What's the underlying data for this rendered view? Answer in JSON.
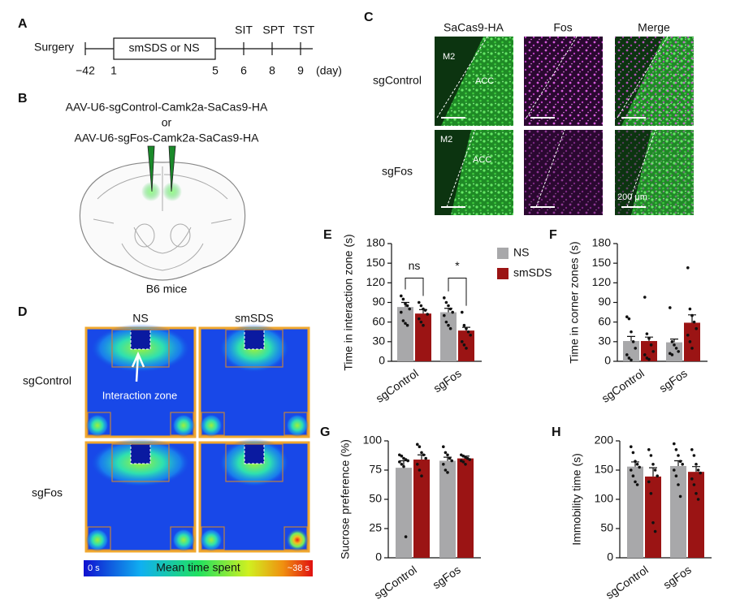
{
  "panel_a": {
    "label": "A",
    "start": "Surgery",
    "treatment": "smSDS or NS",
    "days": [
      "−42",
      "1",
      "5",
      "6",
      "8",
      "9"
    ],
    "unit": "(day)",
    "tests": [
      "SIT",
      "SPT",
      "TST"
    ]
  },
  "panel_b": {
    "label": "B",
    "lines": [
      "AAV-U6-sgControl-Camk2a-SaCas9-HA",
      "or",
      "AAV-U6-sgFos-Camk2a-SaCas9-HA"
    ],
    "caption": "B6 mice"
  },
  "panel_c": {
    "label": "C",
    "columns": [
      "SaCas9-HA",
      "Fos",
      "Merge"
    ],
    "rows": [
      "sgControl",
      "sgFos"
    ],
    "regions": [
      "M2",
      "ACC"
    ],
    "scale_bar": "200 μm"
  },
  "panel_d": {
    "label": "D",
    "columns": [
      "NS",
      "smSDS"
    ],
    "rows": [
      "sgControl",
      "sgFos"
    ],
    "annotation": "Interaction zone",
    "colorbar": {
      "min": "0 s",
      "title": "Mean time spent",
      "max": "~38 s"
    }
  },
  "chart_data": [
    {
      "panel": "E",
      "type": "bar",
      "ylabel": "Time in interaction zone (s)",
      "categories": [
        "sgControl",
        "sgFos"
      ],
      "ylim": [
        0,
        180
      ],
      "yticks": [
        0,
        30,
        60,
        90,
        120,
        150,
        180
      ],
      "legend": true,
      "annotations": [
        "ns",
        "*"
      ],
      "series": [
        {
          "name": "NS",
          "color": "#a8a8aa",
          "values": [
            83,
            75
          ],
          "errors": [
            7,
            6
          ],
          "points": [
            [
              100,
              95,
              88,
              85,
              80,
              75,
              62,
              58,
              55
            ],
            [
              97,
              90,
              85,
              80,
              75,
              70,
              60,
              55,
              50
            ]
          ]
        },
        {
          "name": "smSDS",
          "color": "#9b1414",
          "values": [
            73,
            47
          ],
          "errors": [
            6,
            5
          ],
          "points": [
            [
              90,
              85,
              80,
              78,
              72,
              65,
              60,
              55
            ],
            [
              75,
              55,
              50,
              45,
              40,
              30,
              25,
              20
            ]
          ]
        }
      ]
    },
    {
      "panel": "F",
      "type": "bar",
      "ylabel": "Time in corner zones (s)",
      "categories": [
        "sgControl",
        "sgFos"
      ],
      "ylim": [
        0,
        180
      ],
      "yticks": [
        0,
        30,
        60,
        90,
        120,
        150,
        180
      ],
      "series": [
        {
          "color": "#a8a8aa",
          "values": [
            31,
            29
          ],
          "errors": [
            7,
            5
          ],
          "points": [
            [
              68,
              65,
              45,
              30,
              20,
              10,
              5,
              2
            ],
            [
              82,
              30,
              25,
              20,
              15,
              12,
              10
            ]
          ]
        },
        {
          "color": "#9b1414",
          "values": [
            31,
            59
          ],
          "errors": [
            6,
            12
          ],
          "points": [
            [
              98,
              42,
              35,
              25,
              15,
              10,
              5,
              3
            ],
            [
              143,
              80,
              70,
              60,
              50,
              40,
              30,
              20
            ]
          ]
        }
      ]
    },
    {
      "panel": "G",
      "type": "bar",
      "ylabel": "Sucrose preference (%)",
      "categories": [
        "sgControl",
        "sgFos"
      ],
      "ylim": [
        0,
        100
      ],
      "yticks": [
        0,
        25,
        50,
        75,
        100
      ],
      "series": [
        {
          "color": "#a8a8aa",
          "values": [
            77,
            83
          ],
          "errors": [
            6,
            3
          ],
          "points": [
            [
              88,
              87,
              85,
              84,
              83,
              82,
              80,
              78,
              18
            ],
            [
              95,
              90,
              88,
              85,
              83,
              80,
              75,
              73
            ]
          ]
        },
        {
          "color": "#9b1414",
          "values": [
            84,
            85
          ],
          "errors": [
            4,
            2
          ],
          "points": [
            [
              97,
              95,
              90,
              88,
              85,
              80,
              75,
              70
            ],
            [
              88,
              87,
              86,
              85,
              84,
              83,
              82,
              80
            ]
          ]
        }
      ]
    },
    {
      "panel": "H",
      "type": "bar",
      "ylabel": "Immobility time (s)",
      "categories": [
        "sgControl",
        "sgFos"
      ],
      "ylim": [
        0,
        200
      ],
      "yticks": [
        0,
        50,
        100,
        150,
        200
      ],
      "series": [
        {
          "color": "#a8a8aa",
          "values": [
            156,
            157
          ],
          "errors": [
            8,
            9
          ],
          "points": [
            [
              190,
              180,
              165,
              160,
              155,
              150,
              140,
              130,
              125
            ],
            [
              195,
              185,
              175,
              165,
              160,
              150,
              140,
              125,
              105
            ]
          ]
        },
        {
          "color": "#9b1414",
          "values": [
            139,
            147
          ],
          "errors": [
            15,
            9
          ],
          "points": [
            [
              185,
              175,
              160,
              150,
              140,
              130,
              110,
              60,
              45
            ],
            [
              185,
              175,
              160,
              150,
              145,
              135,
              125,
              110,
              100
            ]
          ]
        }
      ]
    }
  ]
}
